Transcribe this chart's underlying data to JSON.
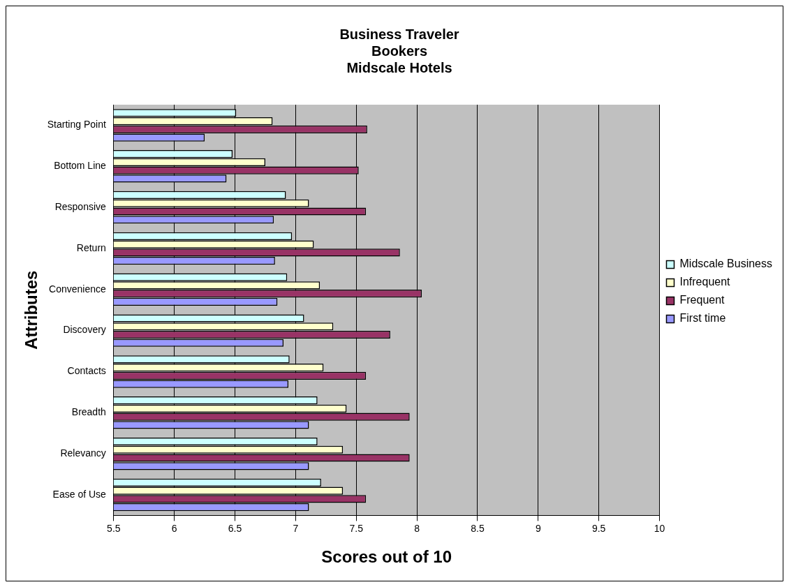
{
  "chart_data": {
    "type": "bar",
    "orientation": "horizontal",
    "title": "Business Traveler\nBookers\nMidscale Hotels",
    "xlabel": "Scores out of 10",
    "ylabel": "Attributes",
    "categories": [
      "Starting Point",
      "Bottom Line",
      "Responsive",
      "Return",
      "Convenience",
      "Discovery",
      "Contacts",
      "Breadth",
      "Relevancy",
      "Ease of Use"
    ],
    "series": [
      {
        "name": "Midscale Business",
        "color": "#ccffff",
        "values": [
          6.51,
          6.48,
          6.92,
          6.97,
          6.93,
          7.07,
          6.95,
          7.18,
          7.18,
          7.21
        ]
      },
      {
        "name": "Infrequent",
        "color": "#ffffcc",
        "values": [
          6.81,
          6.75,
          7.11,
          7.15,
          7.2,
          7.31,
          7.23,
          7.42,
          7.39,
          7.39
        ]
      },
      {
        "name": "Frequent",
        "color": "#993366",
        "values": [
          7.59,
          7.52,
          7.58,
          7.86,
          8.04,
          7.78,
          7.58,
          7.94,
          7.94,
          7.58
        ]
      },
      {
        "name": "First time",
        "color": "#9999ff",
        "values": [
          6.25,
          6.43,
          6.82,
          6.83,
          6.85,
          6.9,
          6.94,
          7.11,
          7.11,
          7.11
        ]
      }
    ],
    "xlim": [
      5.5,
      10
    ],
    "xticks": [
      5.5,
      6,
      6.5,
      7,
      7.5,
      8,
      8.5,
      9,
      9.5,
      10
    ],
    "grid": "x",
    "legend": "right"
  }
}
